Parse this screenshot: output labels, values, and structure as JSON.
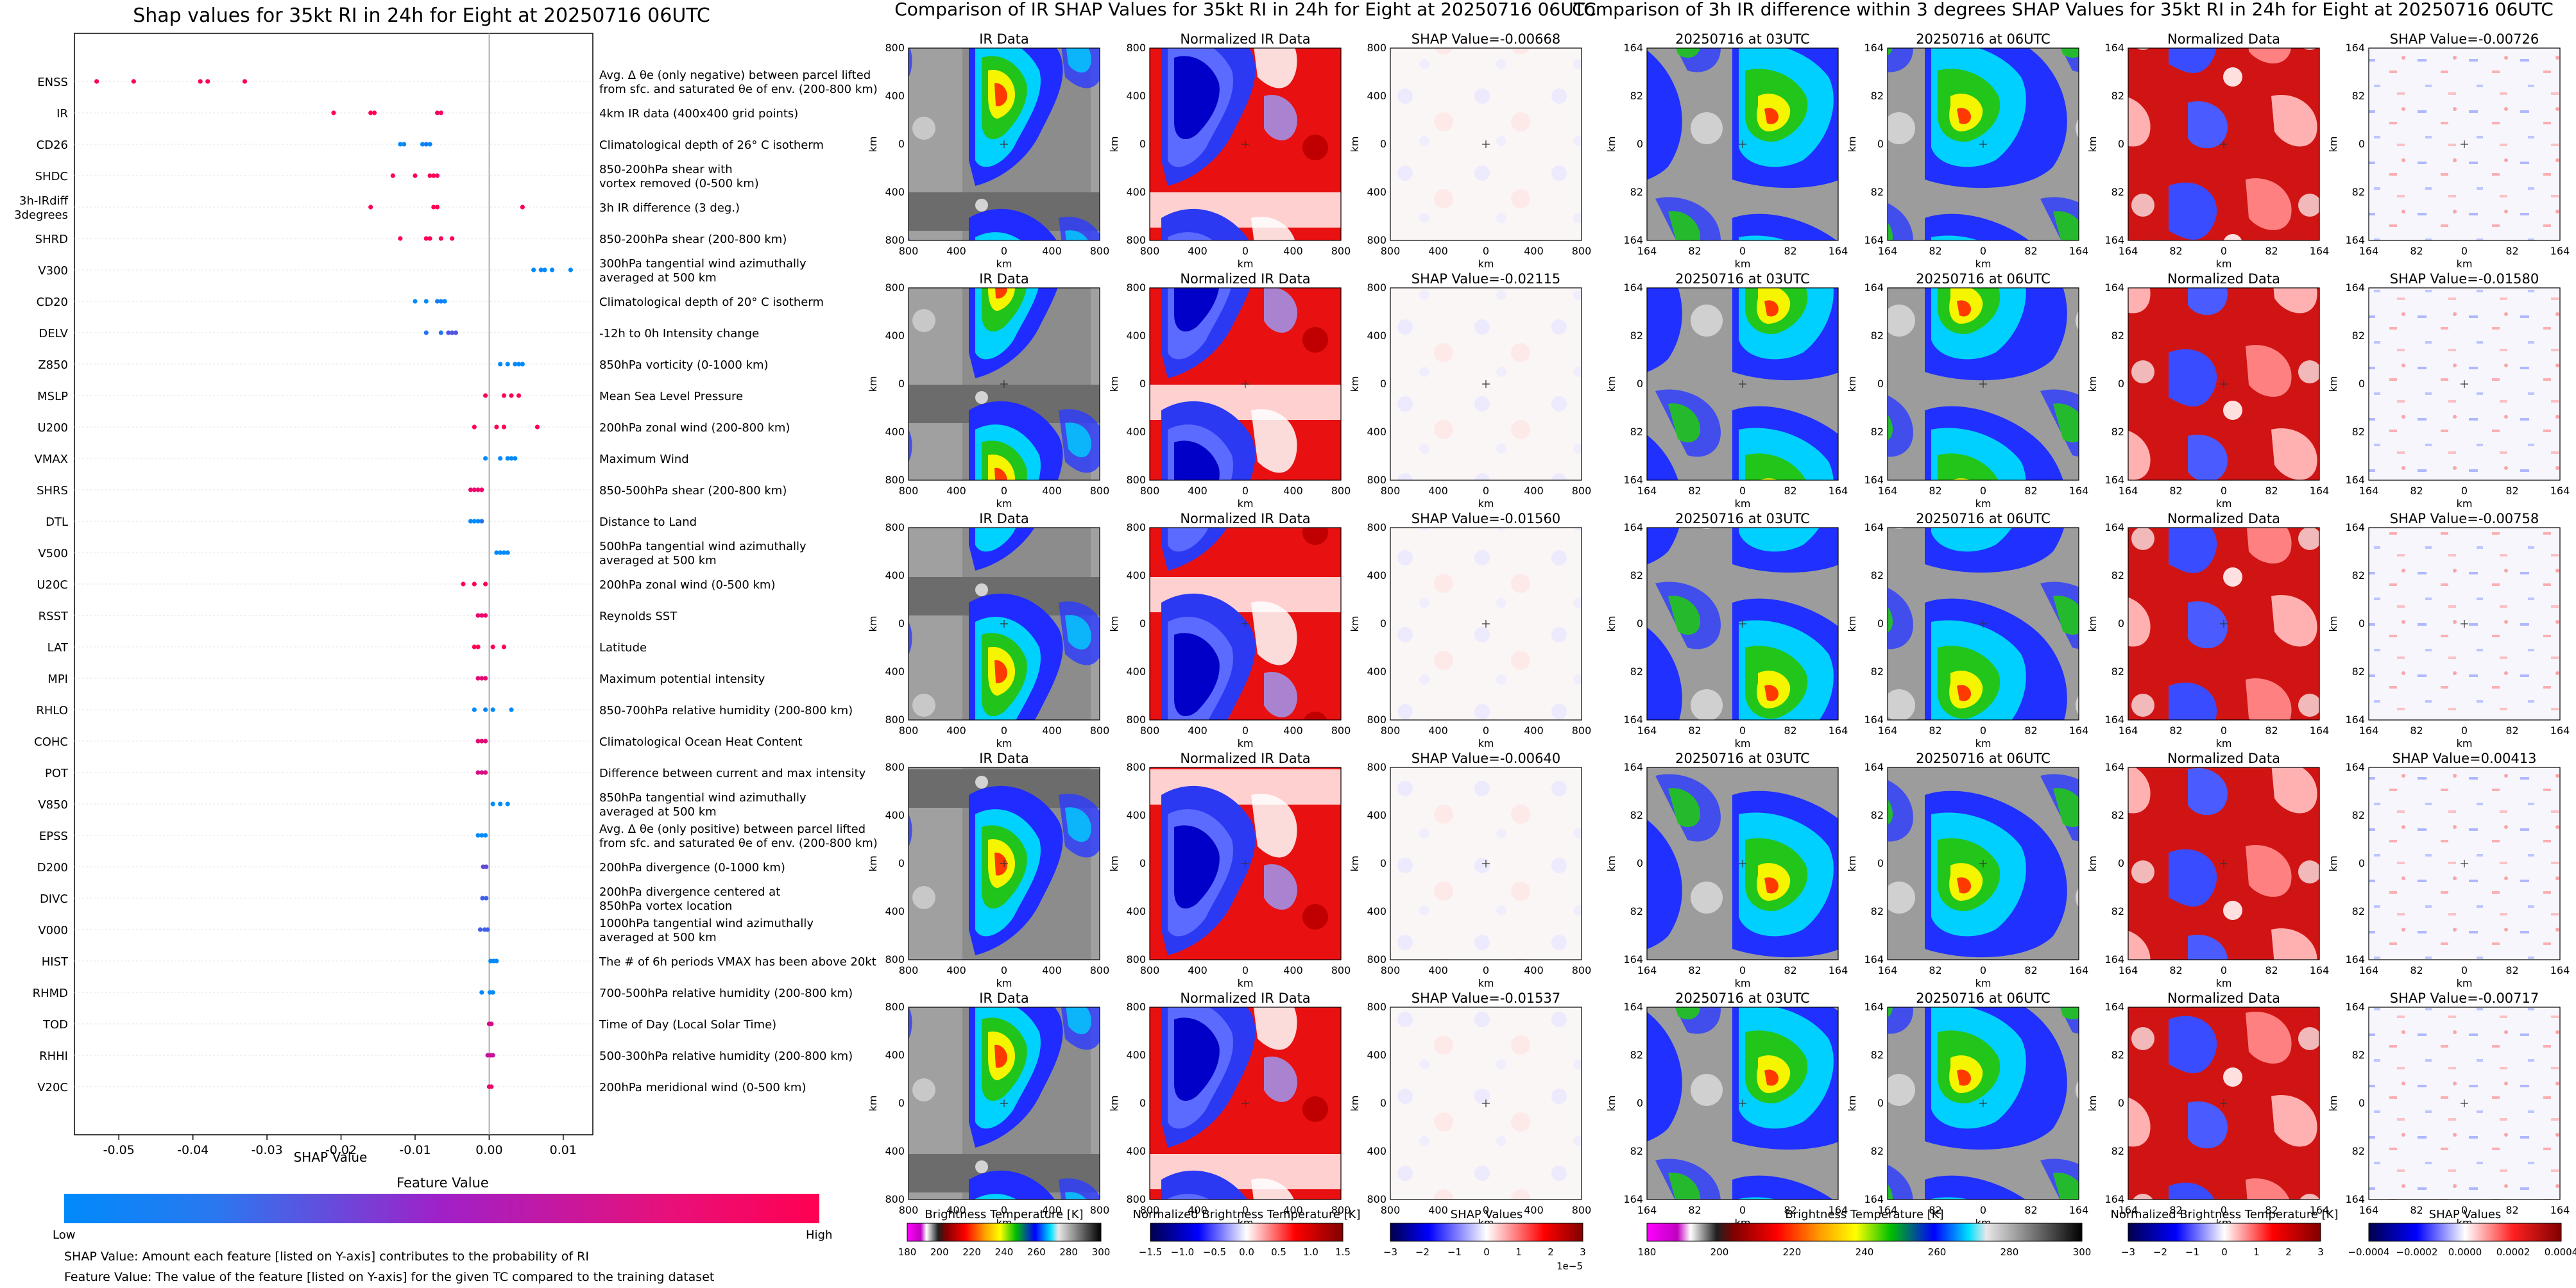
{
  "colors": {
    "low": "#008afb",
    "mid": "#a020c8",
    "high": "#ff0052",
    "grid": "#e6e6e6",
    "zero_line": "#999999"
  },
  "chart_data": [
    {
      "type": "scatter",
      "chart_kind": "shap-beeswarm",
      "title": "Shap values for 35kt RI in 24h for Eight at 20250716 06UTC",
      "xlabel": "SHAP Value",
      "xticks": [
        "-0.05",
        "-0.04",
        "-0.03",
        "-0.02",
        "-0.01",
        "0.00",
        "0.01"
      ],
      "xlim": [
        -0.056,
        0.014
      ],
      "features": [
        {
          "code": "ENSS",
          "desc": "Avg. Δ θe (only negative) between parcel lifted\nfrom sfc. and saturated θe of env. (200-800 km)",
          "points": [
            [
              -0.053,
              1
            ],
            [
              -0.048,
              1
            ],
            [
              -0.039,
              1
            ],
            [
              -0.038,
              1
            ],
            [
              -0.033,
              1
            ]
          ]
        },
        {
          "code": "IR",
          "desc": "4km IR data (400x400 grid points)",
          "points": [
            [
              -0.021,
              1
            ],
            [
              -0.016,
              1
            ],
            [
              -0.0155,
              1
            ],
            [
              -0.007,
              0.95
            ],
            [
              -0.0065,
              0.95
            ]
          ]
        },
        {
          "code": "CD26",
          "desc": "Climatological depth of 26° C isotherm",
          "points": [
            [
              -0.012,
              0
            ],
            [
              -0.0115,
              0
            ],
            [
              -0.009,
              0
            ],
            [
              -0.0085,
              0.1
            ],
            [
              -0.008,
              0
            ]
          ]
        },
        {
          "code": "SHDC",
          "desc": "850-200hPa shear with\nvortex removed (0-500 km)",
          "points": [
            [
              -0.013,
              1
            ],
            [
              -0.01,
              1
            ],
            [
              -0.008,
              1
            ],
            [
              -0.0075,
              1
            ],
            [
              -0.007,
              0.9
            ]
          ]
        },
        {
          "code": "3h-IRdiff\n3degrees",
          "desc": "3h IR difference (3 deg.)",
          "points": [
            [
              -0.016,
              1
            ],
            [
              -0.0075,
              1
            ],
            [
              -0.007,
              1
            ],
            [
              0.0045,
              1
            ]
          ]
        },
        {
          "code": "SHRD",
          "desc": "850-200hPa shear (200-800 km)",
          "points": [
            [
              -0.012,
              1
            ],
            [
              -0.0085,
              1
            ],
            [
              -0.008,
              1
            ],
            [
              -0.0065,
              1
            ],
            [
              -0.005,
              1
            ]
          ]
        },
        {
          "code": "V300",
          "desc": "300hPa tangential wind azimuthally\naveraged at 500 km",
          "points": [
            [
              0.006,
              0
            ],
            [
              0.007,
              0
            ],
            [
              0.0075,
              0
            ],
            [
              0.0085,
              0
            ],
            [
              0.011,
              0
            ]
          ]
        },
        {
          "code": "CD20",
          "desc": "Climatological depth of 20° C isotherm",
          "points": [
            [
              -0.01,
              0
            ],
            [
              -0.0085,
              0
            ],
            [
              -0.007,
              0.05
            ],
            [
              -0.0065,
              0.05
            ],
            [
              -0.006,
              0
            ]
          ]
        },
        {
          "code": "DELV",
          "desc": "-12h to 0h Intensity change",
          "points": [
            [
              -0.0085,
              0.1
            ],
            [
              -0.0065,
              0.1
            ],
            [
              -0.0055,
              0.25
            ],
            [
              -0.005,
              0.25
            ],
            [
              -0.0045,
              0.25
            ]
          ]
        },
        {
          "code": "Z850",
          "desc": "850hPa vorticity (0-1000 km)",
          "points": [
            [
              0.0015,
              0
            ],
            [
              0.0025,
              0
            ],
            [
              0.0035,
              0
            ],
            [
              0.004,
              0
            ],
            [
              0.0045,
              0
            ]
          ]
        },
        {
          "code": "MSLP",
          "desc": "Mean Sea Level Pressure",
          "points": [
            [
              -0.0005,
              1
            ],
            [
              0.002,
              1
            ],
            [
              0.003,
              1
            ],
            [
              0.004,
              1
            ]
          ]
        },
        {
          "code": "U200",
          "desc": "200hPa zonal wind (200-800 km)",
          "points": [
            [
              -0.002,
              1
            ],
            [
              0.001,
              1
            ],
            [
              0.002,
              1
            ],
            [
              0.0065,
              1
            ]
          ]
        },
        {
          "code": "VMAX",
          "desc": "Maximum Wind",
          "points": [
            [
              -0.0005,
              0
            ],
            [
              0.0015,
              0
            ],
            [
              0.0025,
              0
            ],
            [
              0.003,
              0
            ],
            [
              0.0035,
              0
            ]
          ]
        },
        {
          "code": "SHRS",
          "desc": "850-500hPa shear (200-800 km)",
          "points": [
            [
              -0.0025,
              0.9
            ],
            [
              -0.002,
              0.9
            ],
            [
              -0.0015,
              0.9
            ],
            [
              -0.001,
              0.9
            ]
          ]
        },
        {
          "code": "DTL",
          "desc": "Distance to Land",
          "points": [
            [
              -0.0025,
              0
            ],
            [
              -0.002,
              0
            ],
            [
              -0.0015,
              0
            ],
            [
              -0.001,
              0.1
            ]
          ]
        },
        {
          "code": "V500",
          "desc": "500hPa tangential wind azimuthally\naveraged at 500 km",
          "points": [
            [
              0.001,
              0
            ],
            [
              0.0015,
              0
            ],
            [
              0.002,
              0
            ],
            [
              0.0025,
              0
            ]
          ]
        },
        {
          "code": "U20C",
          "desc": "200hPa zonal wind (0-500 km)",
          "points": [
            [
              -0.0035,
              1
            ],
            [
              -0.002,
              1
            ],
            [
              -0.0005,
              1
            ]
          ]
        },
        {
          "code": "RSST",
          "desc": "Reynolds SST",
          "points": [
            [
              -0.0015,
              0.9
            ],
            [
              -0.001,
              0.9
            ],
            [
              -0.0005,
              0.9
            ]
          ]
        },
        {
          "code": "LAT",
          "desc": "Latitude",
          "points": [
            [
              -0.002,
              1
            ],
            [
              -0.0015,
              1
            ],
            [
              0.0005,
              1
            ],
            [
              0.002,
              1
            ]
          ]
        },
        {
          "code": "MPI",
          "desc": "Maximum potential intensity",
          "points": [
            [
              -0.0015,
              0.85
            ],
            [
              -0.001,
              0.85
            ],
            [
              -0.0005,
              0.85
            ]
          ]
        },
        {
          "code": "RHLO",
          "desc": "850-700hPa relative humidity (200-800 km)",
          "points": [
            [
              -0.002,
              0
            ],
            [
              -0.0005,
              0
            ],
            [
              0.0005,
              0
            ],
            [
              0.003,
              0
            ]
          ]
        },
        {
          "code": "COHC",
          "desc": "Climatological Ocean Heat Content",
          "points": [
            [
              -0.0015,
              0.85
            ],
            [
              -0.001,
              0.85
            ],
            [
              -0.0005,
              0.85
            ]
          ]
        },
        {
          "code": "POT",
          "desc": "Difference between current and max intensity",
          "points": [
            [
              -0.0015,
              0.8
            ],
            [
              -0.001,
              0.8
            ],
            [
              -0.0005,
              0.8
            ]
          ]
        },
        {
          "code": "V850",
          "desc": "850hPa tangential wind azimuthally\naveraged at 500 km",
          "points": [
            [
              0.0005,
              0
            ],
            [
              0.0015,
              0
            ],
            [
              0.0025,
              0
            ]
          ]
        },
        {
          "code": "EPSS",
          "desc": "Avg. Δ θe (only positive) between parcel lifted\nfrom sfc. and saturated θe of env. (200-800 km)",
          "points": [
            [
              -0.0015,
              0
            ],
            [
              -0.001,
              0
            ],
            [
              -0.0005,
              0
            ]
          ]
        },
        {
          "code": "D200",
          "desc": "200hPa divergence (0-1000 km)",
          "points": [
            [
              -0.0008,
              0.3
            ],
            [
              -0.0004,
              0.3
            ]
          ]
        },
        {
          "code": "DIVC",
          "desc": "200hPa divergence centered at\n850hPa vortex location",
          "points": [
            [
              -0.0009,
              0.2
            ],
            [
              -0.0004,
              0.2
            ]
          ]
        },
        {
          "code": "V000",
          "desc": "1000hPa tangential wind azimuthally\naveraged at 500 km",
          "points": [
            [
              -0.0012,
              0.2
            ],
            [
              -0.0006,
              0.2
            ],
            [
              -0.0002,
              0.2
            ]
          ]
        },
        {
          "code": "HIST",
          "desc": "The # of 6h periods VMAX has been above 20kt",
          "points": [
            [
              0.0002,
              0
            ],
            [
              0.0006,
              0
            ],
            [
              0.001,
              0
            ]
          ]
        },
        {
          "code": "RHMD",
          "desc": "700-500hPa relative humidity (200-800 km)",
          "points": [
            [
              -0.001,
              0
            ],
            [
              0.0001,
              0
            ],
            [
              0.0005,
              0
            ]
          ]
        },
        {
          "code": "TOD",
          "desc": "Time of Day (Local Solar Time)",
          "points": [
            [
              0.0,
              0.8
            ],
            [
              0.0003,
              0.8
            ]
          ]
        },
        {
          "code": "RHHI",
          "desc": "500-300hPa relative humidity (200-800 km)",
          "points": [
            [
              -0.0002,
              0.7
            ],
            [
              0.0002,
              0.7
            ],
            [
              0.0005,
              0.7
            ]
          ]
        },
        {
          "code": "V20C",
          "desc": "200hPa meridional wind (0-500 km)",
          "points": [
            [
              0.0,
              0.9
            ],
            [
              0.0003,
              0.9
            ]
          ]
        }
      ],
      "colorbar": {
        "title": "Feature Value",
        "low_label": "Low",
        "high_label": "High"
      },
      "notes": [
        "SHAP Value: Amount each feature [listed on Y-axis] contributes to the probability of RI",
        "Feature Value: The value of the feature [listed on Y-axis] for the given TC compared to the training dataset"
      ]
    },
    {
      "type": "heatmap",
      "title": "Comparison of IR SHAP Values for 35kt RI in 24h for Eight at 20250716 06UTC",
      "columns": [
        "IR Data",
        "Normalized IR Data"
      ],
      "shap_titles": [
        "SHAP Value=-0.00668",
        "SHAP Value=-0.02115",
        "SHAP Value=-0.01560",
        "SHAP Value=-0.00640",
        "SHAP Value=-0.01537"
      ],
      "ticks": [
        "800",
        "400",
        "0",
        "400",
        "800"
      ],
      "axis_label": "km",
      "colorbars": [
        {
          "label": "Brightness Temperature [K]",
          "ticks": [
            "180",
            "200",
            "220",
            "240",
            "260",
            "280",
            "300"
          ],
          "multiplier": ""
        },
        {
          "label": "Normalized Brightness Temperature [K]",
          "ticks": [
            "−1.5",
            "−1.0",
            "−0.5",
            "0.0",
            "0.5",
            "1.0",
            "1.5"
          ],
          "multiplier": ""
        },
        {
          "label": "SHAP Values",
          "ticks": [
            "−3",
            "−2",
            "−1",
            "0",
            "1",
            "2",
            "3"
          ],
          "multiplier": "1e−5"
        }
      ]
    },
    {
      "type": "heatmap",
      "title": "Comparison of 3h IR difference within 3 degrees SHAP Values for 35kt RI in 24h for Eight at 20250716 06UTC",
      "columns": [
        "20250716 at 03UTC",
        "20250716 at 06UTC",
        "Normalized Data"
      ],
      "shap_titles": [
        "SHAP Value=-0.00726",
        "SHAP Value=-0.01580",
        "SHAP Value=-0.00758",
        "SHAP Value=0.00413",
        "SHAP Value=-0.00717"
      ],
      "ticks": [
        "164",
        "82",
        "0",
        "82",
        "164"
      ],
      "axis_label": "km",
      "colorbars": [
        {
          "label": "Brightness Temperature [K]",
          "ticks": [
            "180",
            "200",
            "220",
            "240",
            "260",
            "280",
            "300"
          ],
          "multiplier": ""
        },
        {
          "label": "Normalized Brightness Temperature [K]",
          "ticks": [
            "−3",
            "−2",
            "−1",
            "0",
            "1",
            "2",
            "3"
          ],
          "multiplier": ""
        },
        {
          "label": "SHAP Values",
          "ticks": [
            "−0.0004",
            "−0.0002",
            "0.0000",
            "0.0002",
            "0.0004"
          ],
          "multiplier": ""
        }
      ]
    }
  ]
}
